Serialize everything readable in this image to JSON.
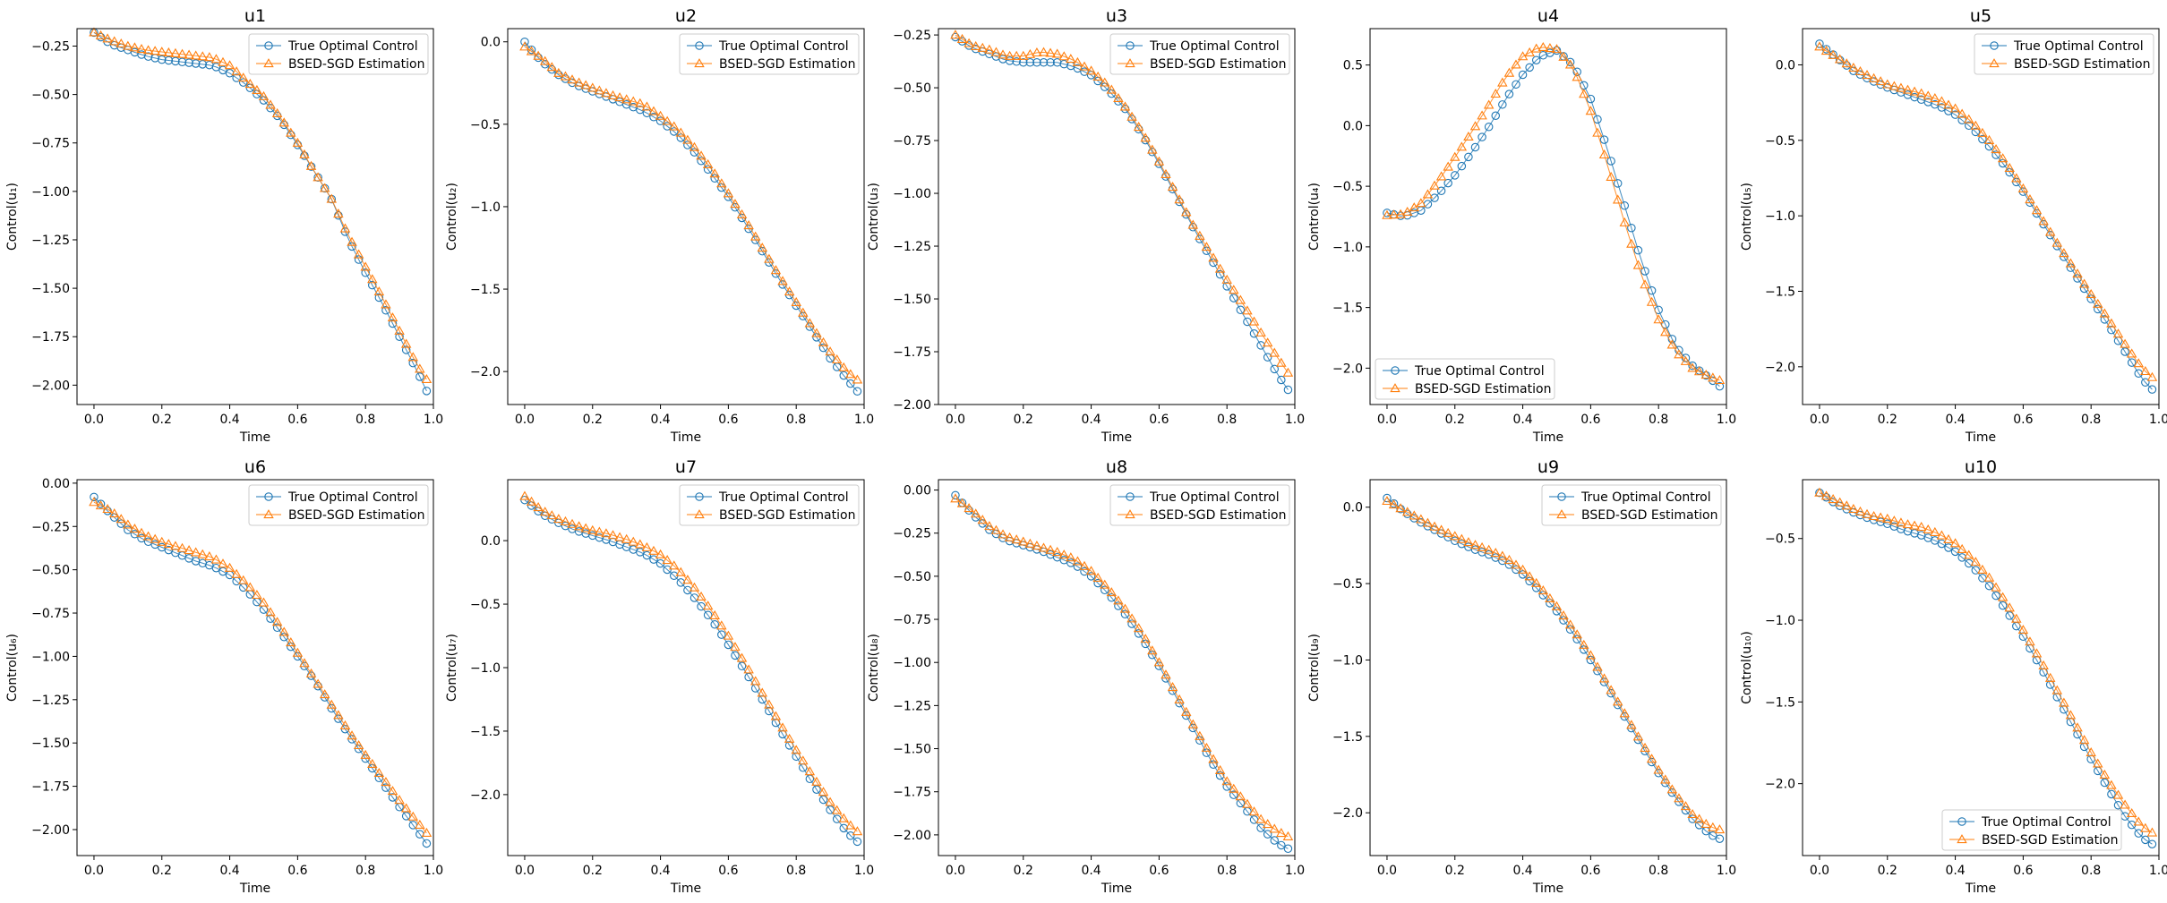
{
  "legend": {
    "true_label": "True Optimal Control",
    "est_label": "BSED-SGD Estimation"
  },
  "colors": {
    "true": "#1f77b4",
    "est": "#ff7f0e"
  },
  "chart_data": [
    {
      "type": "line",
      "title": "u1",
      "xlabel": "Time",
      "ylabel": "Control(u₁)",
      "xlim": [
        -0.05,
        1.0
      ],
      "ylim": [
        -2.1,
        -0.16
      ],
      "yticks": [
        -0.25,
        -0.5,
        -0.75,
        -1.0,
        -1.25,
        -1.5,
        -1.75,
        -2.0
      ],
      "xticks": [
        0.0,
        0.2,
        0.4,
        0.6,
        0.8,
        1.0
      ],
      "legend_loc": "top-right",
      "knots_x": [
        0,
        0.05,
        0.1,
        0.15,
        0.2,
        0.25,
        0.3,
        0.35,
        0.4,
        0.45,
        0.5,
        0.55,
        0.6,
        0.65,
        0.7,
        0.75,
        0.8,
        0.85,
        0.9,
        0.95,
        0.98
      ],
      "series": [
        {
          "name": "True Optimal Control",
          "values": [
            -0.18,
            -0.24,
            -0.27,
            -0.3,
            -0.32,
            -0.33,
            -0.34,
            -0.35,
            -0.39,
            -0.45,
            -0.53,
            -0.63,
            -0.76,
            -0.9,
            -1.04,
            -1.25,
            -1.42,
            -1.58,
            -1.75,
            -1.92,
            -2.03
          ]
        },
        {
          "name": "BSED-SGD Estimation",
          "values": [
            -0.18,
            -0.22,
            -0.25,
            -0.27,
            -0.28,
            -0.29,
            -0.3,
            -0.31,
            -0.35,
            -0.43,
            -0.51,
            -0.62,
            -0.75,
            -0.9,
            -1.04,
            -1.23,
            -1.39,
            -1.55,
            -1.72,
            -1.89,
            -1.97
          ]
        }
      ]
    },
    {
      "type": "line",
      "title": "u2",
      "xlabel": "Time",
      "ylabel": "Control(u₂)",
      "xlim": [
        -0.05,
        1.0
      ],
      "ylim": [
        -2.2,
        0.08
      ],
      "yticks": [
        0.0,
        -0.5,
        -1.0,
        -1.5,
        -2.0
      ],
      "xticks": [
        0.0,
        0.2,
        0.4,
        0.6,
        0.8,
        1.0
      ],
      "legend_loc": "top-right",
      "knots_x": [
        0,
        0.05,
        0.1,
        0.15,
        0.2,
        0.25,
        0.3,
        0.35,
        0.4,
        0.45,
        0.5,
        0.55,
        0.6,
        0.65,
        0.7,
        0.75,
        0.8,
        0.85,
        0.9,
        0.95,
        0.98
      ],
      "series": [
        {
          "name": "True Optimal Control",
          "values": [
            0.0,
            -0.12,
            -0.2,
            -0.26,
            -0.3,
            -0.34,
            -0.38,
            -0.42,
            -0.48,
            -0.56,
            -0.67,
            -0.8,
            -0.94,
            -1.1,
            -1.27,
            -1.44,
            -1.6,
            -1.76,
            -1.92,
            -2.05,
            -2.12
          ]
        },
        {
          "name": "BSED-SGD Estimation",
          "values": [
            -0.03,
            -0.1,
            -0.19,
            -0.24,
            -0.28,
            -0.32,
            -0.35,
            -0.38,
            -0.45,
            -0.53,
            -0.64,
            -0.77,
            -0.92,
            -1.08,
            -1.25,
            -1.42,
            -1.58,
            -1.74,
            -1.88,
            -2.0,
            -2.05
          ]
        }
      ]
    },
    {
      "type": "line",
      "title": "u3",
      "xlabel": "Time",
      "ylabel": "Control(u₃)",
      "xlim": [
        -0.05,
        1.0
      ],
      "ylim": [
        -2.0,
        -0.22
      ],
      "yticks": [
        -0.25,
        -0.5,
        -0.75,
        -1.0,
        -1.25,
        -1.5,
        -1.75,
        -2.0
      ],
      "xticks": [
        0.0,
        0.2,
        0.4,
        0.6,
        0.8,
        1.0
      ],
      "legend_loc": "top-right",
      "knots_x": [
        0,
        0.05,
        0.1,
        0.15,
        0.2,
        0.25,
        0.3,
        0.35,
        0.4,
        0.45,
        0.5,
        0.55,
        0.6,
        0.65,
        0.7,
        0.75,
        0.8,
        0.85,
        0.9,
        0.95,
        0.98
      ],
      "series": [
        {
          "name": "True Optimal Control",
          "values": [
            -0.26,
            -0.31,
            -0.34,
            -0.37,
            -0.38,
            -0.38,
            -0.38,
            -0.4,
            -0.44,
            -0.51,
            -0.6,
            -0.72,
            -0.86,
            -1.01,
            -1.16,
            -1.3,
            -1.44,
            -1.58,
            -1.72,
            -1.86,
            -1.93
          ]
        },
        {
          "name": "BSED-SGD Estimation",
          "values": [
            -0.25,
            -0.3,
            -0.32,
            -0.35,
            -0.35,
            -0.33,
            -0.34,
            -0.37,
            -0.42,
            -0.49,
            -0.59,
            -0.71,
            -0.85,
            -1.0,
            -1.15,
            -1.28,
            -1.41,
            -1.53,
            -1.66,
            -1.78,
            -1.85
          ]
        }
      ]
    },
    {
      "type": "line",
      "title": "u4",
      "xlabel": "Time",
      "ylabel": "Control(u₄)",
      "xlim": [
        -0.05,
        1.0
      ],
      "ylim": [
        -2.3,
        0.8
      ],
      "yticks": [
        0.5,
        0.0,
        -0.5,
        -1.0,
        -1.5,
        -2.0
      ],
      "xticks": [
        0.0,
        0.2,
        0.4,
        0.6,
        0.8,
        1.0
      ],
      "legend_loc": "bottom-left",
      "knots_x": [
        0,
        0.05,
        0.1,
        0.15,
        0.2,
        0.25,
        0.3,
        0.35,
        0.4,
        0.45,
        0.5,
        0.55,
        0.6,
        0.65,
        0.7,
        0.75,
        0.8,
        0.85,
        0.9,
        0.95,
        0.98
      ],
      "series": [
        {
          "name": "True Optimal Control",
          "values": [
            -0.72,
            -0.75,
            -0.7,
            -0.57,
            -0.41,
            -0.22,
            -0.01,
            0.22,
            0.42,
            0.57,
            0.62,
            0.5,
            0.22,
            -0.2,
            -0.66,
            -1.12,
            -1.52,
            -1.82,
            -1.98,
            -2.08,
            -2.15
          ]
        },
        {
          "name": "BSED-SGD Estimation",
          "values": [
            -0.74,
            -0.73,
            -0.64,
            -0.46,
            -0.26,
            -0.05,
            0.17,
            0.4,
            0.57,
            0.65,
            0.63,
            0.47,
            0.12,
            -0.33,
            -0.8,
            -1.24,
            -1.6,
            -1.86,
            -2.0,
            -2.07,
            -2.1
          ]
        }
      ]
    },
    {
      "type": "line",
      "title": "u5",
      "xlabel": "Time",
      "ylabel": "Control(u₅)",
      "xlim": [
        -0.05,
        1.0
      ],
      "ylim": [
        -2.25,
        0.24
      ],
      "yticks": [
        0.0,
        -0.5,
        -1.0,
        -1.5,
        -2.0
      ],
      "xticks": [
        0.0,
        0.2,
        0.4,
        0.6,
        0.8,
        1.0
      ],
      "legend_loc": "top-right",
      "knots_x": [
        0,
        0.05,
        0.1,
        0.15,
        0.2,
        0.25,
        0.3,
        0.35,
        0.4,
        0.45,
        0.5,
        0.55,
        0.6,
        0.65,
        0.7,
        0.75,
        0.8,
        0.85,
        0.9,
        0.95,
        0.98
      ],
      "series": [
        {
          "name": "True Optimal Control",
          "values": [
            0.14,
            0.05,
            -0.04,
            -0.1,
            -0.15,
            -0.19,
            -0.23,
            -0.27,
            -0.33,
            -0.42,
            -0.54,
            -0.68,
            -0.84,
            -1.02,
            -1.2,
            -1.38,
            -1.55,
            -1.72,
            -1.9,
            -2.08,
            -2.15
          ]
        },
        {
          "name": "BSED-SGD Estimation",
          "values": [
            0.12,
            0.05,
            -0.02,
            -0.08,
            -0.13,
            -0.16,
            -0.19,
            -0.23,
            -0.29,
            -0.38,
            -0.5,
            -0.65,
            -0.82,
            -1.0,
            -1.18,
            -1.35,
            -1.52,
            -1.68,
            -1.85,
            -2.01,
            -2.07
          ]
        }
      ]
    },
    {
      "type": "line",
      "title": "u6",
      "xlabel": "Time",
      "ylabel": "Control(u₆)",
      "xlim": [
        -0.05,
        1.0
      ],
      "ylim": [
        -2.15,
        0.02
      ],
      "yticks": [
        0.0,
        -0.25,
        -0.5,
        -0.75,
        -1.0,
        -1.25,
        -1.5,
        -1.75,
        -2.0
      ],
      "xticks": [
        0.0,
        0.2,
        0.4,
        0.6,
        0.8,
        1.0
      ],
      "legend_loc": "top-right",
      "knots_x": [
        0,
        0.05,
        0.1,
        0.15,
        0.2,
        0.25,
        0.3,
        0.35,
        0.4,
        0.45,
        0.5,
        0.55,
        0.6,
        0.65,
        0.7,
        0.75,
        0.8,
        0.85,
        0.9,
        0.95,
        0.98
      ],
      "series": [
        {
          "name": "True Optimal Control",
          "values": [
            -0.08,
            -0.18,
            -0.27,
            -0.33,
            -0.37,
            -0.41,
            -0.45,
            -0.48,
            -0.53,
            -0.62,
            -0.73,
            -0.86,
            -1.0,
            -1.14,
            -1.3,
            -1.45,
            -1.59,
            -1.73,
            -1.87,
            -2.0,
            -2.08
          ]
        },
        {
          "name": "BSED-SGD Estimation",
          "values": [
            -0.11,
            -0.16,
            -0.24,
            -0.3,
            -0.34,
            -0.37,
            -0.4,
            -0.43,
            -0.49,
            -0.58,
            -0.69,
            -0.83,
            -0.98,
            -1.13,
            -1.28,
            -1.43,
            -1.57,
            -1.7,
            -1.83,
            -1.95,
            -2.02
          ]
        }
      ]
    },
    {
      "type": "line",
      "title": "u7",
      "xlabel": "Time",
      "ylabel": "Control(u₇)",
      "xlim": [
        -0.05,
        1.0
      ],
      "ylim": [
        -2.48,
        0.48
      ],
      "yticks": [
        0.0,
        -0.5,
        -1.0,
        -1.5,
        -2.0
      ],
      "xticks": [
        0.0,
        0.2,
        0.4,
        0.6,
        0.8,
        1.0
      ],
      "legend_loc": "top-right",
      "knots_x": [
        0,
        0.05,
        0.1,
        0.15,
        0.2,
        0.25,
        0.3,
        0.35,
        0.4,
        0.45,
        0.5,
        0.55,
        0.6,
        0.65,
        0.7,
        0.75,
        0.8,
        0.85,
        0.9,
        0.95,
        0.98
      ],
      "series": [
        {
          "name": "True Optimal Control",
          "values": [
            0.32,
            0.21,
            0.14,
            0.08,
            0.04,
            0.0,
            -0.05,
            -0.1,
            -0.18,
            -0.3,
            -0.45,
            -0.62,
            -0.82,
            -1.03,
            -1.25,
            -1.48,
            -1.7,
            -1.92,
            -2.12,
            -2.3,
            -2.37
          ]
        },
        {
          "name": "BSED-SGD Estimation",
          "values": [
            0.35,
            0.24,
            0.17,
            0.12,
            0.08,
            0.05,
            0.01,
            -0.04,
            -0.11,
            -0.22,
            -0.37,
            -0.55,
            -0.75,
            -0.97,
            -1.2,
            -1.43,
            -1.65,
            -1.86,
            -2.06,
            -2.22,
            -2.29
          ]
        }
      ]
    },
    {
      "type": "line",
      "title": "u8",
      "xlabel": "Time",
      "ylabel": "Control(u₈)",
      "xlim": [
        -0.05,
        1.0
      ],
      "ylim": [
        -2.12,
        0.06
      ],
      "yticks": [
        0.0,
        -0.25,
        -0.5,
        -0.75,
        -1.0,
        -1.25,
        -1.5,
        -1.75,
        -2.0
      ],
      "xticks": [
        0.0,
        0.2,
        0.4,
        0.6,
        0.8,
        1.0
      ],
      "legend_loc": "top-right",
      "knots_x": [
        0,
        0.05,
        0.1,
        0.15,
        0.2,
        0.25,
        0.3,
        0.35,
        0.4,
        0.45,
        0.5,
        0.55,
        0.6,
        0.65,
        0.7,
        0.75,
        0.8,
        0.85,
        0.9,
        0.95,
        0.98
      ],
      "series": [
        {
          "name": "True Optimal Control",
          "values": [
            -0.03,
            -0.14,
            -0.23,
            -0.29,
            -0.32,
            -0.35,
            -0.39,
            -0.43,
            -0.5,
            -0.6,
            -0.72,
            -0.86,
            -1.02,
            -1.2,
            -1.38,
            -1.56,
            -1.72,
            -1.84,
            -1.96,
            -2.05,
            -2.08
          ]
        },
        {
          "name": "BSED-SGD Estimation",
          "values": [
            -0.05,
            -0.12,
            -0.21,
            -0.27,
            -0.3,
            -0.33,
            -0.36,
            -0.4,
            -0.47,
            -0.57,
            -0.69,
            -0.83,
            -1.0,
            -1.18,
            -1.36,
            -1.53,
            -1.69,
            -1.8,
            -1.91,
            -1.98,
            -2.01
          ]
        }
      ]
    },
    {
      "type": "line",
      "title": "u9",
      "xlabel": "Time",
      "ylabel": "Control(u₉)",
      "xlim": [
        -0.05,
        1.0
      ],
      "ylim": [
        -2.28,
        0.18
      ],
      "yticks": [
        0.0,
        -0.5,
        -1.0,
        -1.5,
        -2.0
      ],
      "xticks": [
        0.0,
        0.2,
        0.4,
        0.6,
        0.8,
        1.0
      ],
      "legend_loc": "top-right",
      "knots_x": [
        0,
        0.05,
        0.1,
        0.15,
        0.2,
        0.25,
        0.3,
        0.35,
        0.4,
        0.45,
        0.5,
        0.55,
        0.6,
        0.65,
        0.7,
        0.75,
        0.8,
        0.85,
        0.9,
        0.95,
        0.98
      ],
      "series": [
        {
          "name": "True Optimal Control",
          "values": [
            0.06,
            -0.03,
            -0.1,
            -0.16,
            -0.22,
            -0.27,
            -0.31,
            -0.36,
            -0.44,
            -0.55,
            -0.68,
            -0.83,
            -1.0,
            -1.18,
            -1.37,
            -1.56,
            -1.74,
            -1.9,
            -2.04,
            -2.14,
            -2.17
          ]
        },
        {
          "name": "BSED-SGD Estimation",
          "values": [
            0.04,
            -0.02,
            -0.08,
            -0.14,
            -0.19,
            -0.24,
            -0.28,
            -0.33,
            -0.41,
            -0.52,
            -0.65,
            -0.8,
            -0.97,
            -1.16,
            -1.35,
            -1.54,
            -1.72,
            -1.88,
            -2.01,
            -2.09,
            -2.11
          ]
        }
      ]
    },
    {
      "type": "line",
      "title": "u10",
      "xlabel": "Time",
      "ylabel": "Control(u₁₀)",
      "xlim": [
        -0.05,
        1.0
      ],
      "ylim": [
        -2.44,
        -0.14
      ],
      "yticks": [
        -0.5,
        -1.0,
        -1.5,
        -2.0
      ],
      "xticks": [
        0.0,
        0.2,
        0.4,
        0.6,
        0.8,
        1.0
      ],
      "legend_loc": "bottom-right",
      "knots_x": [
        0,
        0.05,
        0.1,
        0.15,
        0.2,
        0.25,
        0.3,
        0.35,
        0.4,
        0.45,
        0.5,
        0.55,
        0.6,
        0.65,
        0.7,
        0.75,
        0.8,
        0.85,
        0.9,
        0.95,
        0.98
      ],
      "series": [
        {
          "name": "True Optimal Control",
          "values": [
            -0.22,
            -0.29,
            -0.34,
            -0.38,
            -0.41,
            -0.45,
            -0.48,
            -0.52,
            -0.58,
            -0.67,
            -0.79,
            -0.94,
            -1.1,
            -1.28,
            -1.47,
            -1.66,
            -1.85,
            -2.03,
            -2.2,
            -2.33,
            -2.37
          ]
        },
        {
          "name": "BSED-SGD Estimation",
          "values": [
            -0.22,
            -0.27,
            -0.32,
            -0.36,
            -0.38,
            -0.41,
            -0.43,
            -0.47,
            -0.53,
            -0.62,
            -0.74,
            -0.89,
            -1.06,
            -1.24,
            -1.43,
            -1.62,
            -1.81,
            -1.98,
            -2.13,
            -2.26,
            -2.3
          ]
        }
      ]
    }
  ]
}
